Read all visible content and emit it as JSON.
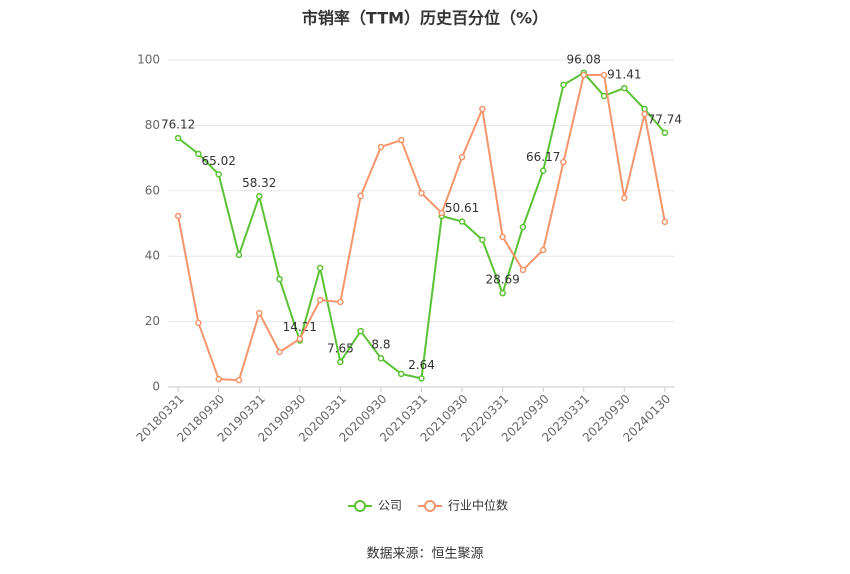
{
  "chart_data": {
    "type": "line",
    "title": "市销率（TTM）历史百分位（%）",
    "categories": [
      "20180331",
      null,
      "20180930",
      null,
      "20190331",
      null,
      "20190930",
      null,
      "20200331",
      null,
      "20200930",
      null,
      "20210331",
      null,
      "20210930",
      null,
      "20220331",
      null,
      "20220930",
      null,
      "20230331",
      null,
      "20230930",
      null,
      "20240130"
    ],
    "series": [
      {
        "name": "公司",
        "color": "#5ac234",
        "values": [
          76.12,
          71.3,
          65.02,
          40.4,
          58.32,
          33,
          14.21,
          36.4,
          7.65,
          17.1,
          8.8,
          4,
          2.64,
          52.3,
          50.61,
          45,
          28.69,
          48.9,
          66.17,
          92.4,
          96.08,
          89,
          91.41,
          85,
          77.74
        ]
      },
      {
        "name": "行业中位数",
        "color": "#f4956b",
        "values": [
          52.3,
          19.6,
          2.4,
          2.1,
          22.6,
          10.7,
          14.7,
          26.6,
          26,
          58.4,
          73.4,
          75.5,
          59.3,
          53.2,
          70.3,
          85,
          45.9,
          35.8,
          41.9,
          68.8,
          95.4,
          95.4,
          57.8,
          83.5,
          50.5
        ]
      }
    ],
    "ylim": [
      0,
      100
    ],
    "yticks": [
      0,
      20,
      40,
      60,
      80,
      100
    ],
    "grid": true,
    "source": "数据来源：恒生聚源"
  }
}
